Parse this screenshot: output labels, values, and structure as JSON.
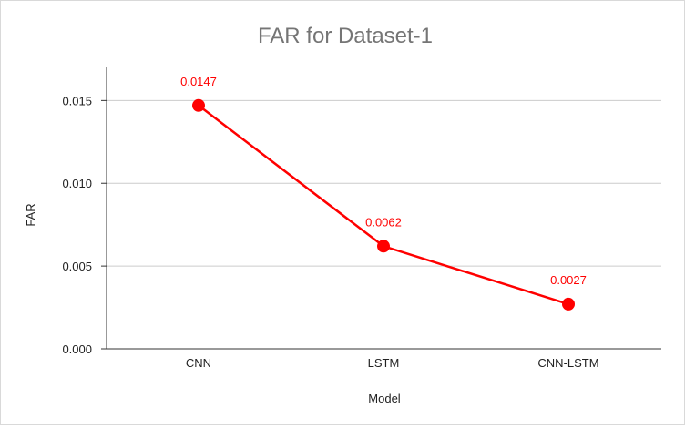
{
  "chart_data": {
    "type": "line",
    "title": "FAR for Dataset-1",
    "xlabel": "Model",
    "ylabel": "FAR",
    "categories": [
      "CNN",
      "LSTM",
      "CNN-LSTM"
    ],
    "series": [
      {
        "values": [
          0.0147,
          0.0062,
          0.0027
        ],
        "color": "#ff0000"
      }
    ],
    "data_labels": [
      "0.0147",
      "0.0062",
      "0.0027"
    ],
    "yticks": [
      "0.000",
      "0.005",
      "0.010",
      "0.015"
    ],
    "ytick_values": [
      0,
      0.005,
      0.01,
      0.015
    ],
    "ylim": [
      0,
      0.017
    ],
    "grid": true,
    "legend": "none",
    "colors": {
      "series": "#ff0000",
      "title": "#757575",
      "grid": "#cccccc",
      "axis": "#333333"
    }
  }
}
